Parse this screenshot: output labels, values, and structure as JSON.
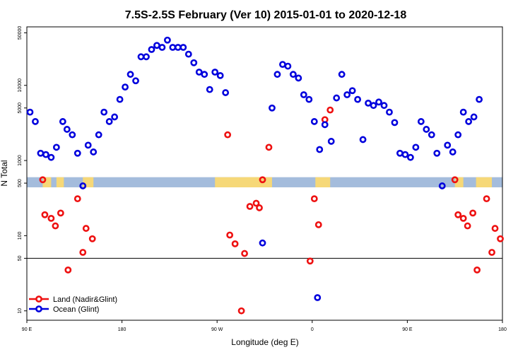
{
  "chart_data": {
    "type": "scatter",
    "title": "7.5S-2.5S February (Ver 10)   2015-01-01 to 2020-12-18",
    "xlabel": "Longitude (deg E)",
    "ylabel": "N Total",
    "x_scale": "linear",
    "y_scale": "log",
    "xlim": [
      90,
      540
    ],
    "ylim": [
      7.5,
      60000
    ],
    "x_ticks": [
      {
        "value": 90,
        "label": "90 E"
      },
      {
        "value": 180,
        "label": "180"
      },
      {
        "value": 270,
        "label": "90 W"
      },
      {
        "value": 360,
        "label": "0"
      },
      {
        "value": 450,
        "label": "90 E"
      },
      {
        "value": 540,
        "label": "180"
      }
    ],
    "y_ticks": [
      {
        "value": 10,
        "label": "10"
      },
      {
        "value": 50,
        "label": "50"
      },
      {
        "value": 100,
        "label": "100"
      },
      {
        "value": 500,
        "label": "500"
      },
      {
        "value": 1000,
        "label": "1000"
      },
      {
        "value": 5000,
        "label": "5000"
      },
      {
        "value": 10000,
        "label": "10000"
      },
      {
        "value": 50000,
        "label": "50000"
      }
    ],
    "reference_line_y": 50,
    "grid": false,
    "legend_position": "bottom-left",
    "colors": {
      "land": "#ee1111",
      "ocean": "#0000dd",
      "ocean_band": "#a4bcdc",
      "land_band": "#f6d878"
    },
    "series": [
      {
        "name": "Land (Nadir&Glint)",
        "color": "#ee1111",
        "points": [
          [
            105,
            555
          ],
          [
            107,
            190
          ],
          [
            113,
            170
          ],
          [
            117,
            135
          ],
          [
            122,
            200
          ],
          [
            129,
            35
          ],
          [
            138,
            310
          ],
          [
            143,
            60
          ],
          [
            146,
            125
          ],
          [
            152,
            91
          ],
          [
            280,
            2200
          ],
          [
            282,
            102
          ],
          [
            287,
            78
          ],
          [
            296,
            58
          ],
          [
            301,
            245
          ],
          [
            307,
            270
          ],
          [
            310,
            235
          ],
          [
            313,
            555
          ],
          [
            319,
            1500
          ],
          [
            358,
            46
          ],
          [
            362,
            310
          ],
          [
            366,
            140
          ],
          [
            372,
            3500
          ],
          [
            377,
            4700
          ],
          [
            495,
            555
          ],
          [
            498,
            190
          ],
          [
            503,
            170
          ],
          [
            507,
            135
          ],
          [
            512,
            200
          ],
          [
            516,
            35
          ],
          [
            525,
            310
          ],
          [
            530,
            60
          ],
          [
            533,
            125
          ],
          [
            538,
            91
          ],
          [
            293,
            10
          ]
        ]
      },
      {
        "name": "Ocean (Glint)",
        "color": "#0000dd",
        "points": [
          [
            93,
            4400
          ],
          [
            98,
            3300
          ],
          [
            103,
            1250
          ],
          [
            108,
            1200
          ],
          [
            113,
            1100
          ],
          [
            118,
            1500
          ],
          [
            124,
            3300
          ],
          [
            128,
            2600
          ],
          [
            133,
            2200
          ],
          [
            138,
            1250
          ],
          [
            143,
            460
          ],
          [
            148,
            1600
          ],
          [
            153,
            1300
          ],
          [
            158,
            2200
          ],
          [
            163,
            4400
          ],
          [
            168,
            3300
          ],
          [
            173,
            3800
          ],
          [
            178,
            6500
          ],
          [
            183,
            9500
          ],
          [
            188,
            14000
          ],
          [
            193,
            11500
          ],
          [
            198,
            24000
          ],
          [
            203,
            24000
          ],
          [
            208,
            30000
          ],
          [
            213,
            34000
          ],
          [
            218,
            32000
          ],
          [
            223,
            40000
          ],
          [
            228,
            32000
          ],
          [
            233,
            32000
          ],
          [
            238,
            32000
          ],
          [
            243,
            26000
          ],
          [
            248,
            20000
          ],
          [
            253,
            15000
          ],
          [
            258,
            14000
          ],
          [
            263,
            8800
          ],
          [
            268,
            15000
          ],
          [
            273,
            13500
          ],
          [
            278,
            8000
          ],
          [
            313,
            80
          ],
          [
            322,
            5000
          ],
          [
            327,
            14000
          ],
          [
            332,
            19000
          ],
          [
            337,
            18000
          ],
          [
            342,
            14000
          ],
          [
            347,
            12500
          ],
          [
            352,
            7500
          ],
          [
            357,
            6500
          ],
          [
            362,
            3300
          ],
          [
            367,
            1400
          ],
          [
            372,
            3000
          ],
          [
            378,
            1800
          ],
          [
            383,
            6800
          ],
          [
            388,
            14000
          ],
          [
            393,
            7500
          ],
          [
            398,
            8500
          ],
          [
            403,
            6500
          ],
          [
            408,
            1900
          ],
          [
            413,
            5800
          ],
          [
            418,
            5400
          ],
          [
            423,
            6000
          ],
          [
            428,
            5400
          ],
          [
            433,
            4400
          ],
          [
            438,
            3200
          ],
          [
            443,
            1250
          ],
          [
            448,
            1200
          ],
          [
            453,
            1100
          ],
          [
            458,
            1500
          ],
          [
            463,
            3300
          ],
          [
            468,
            2600
          ],
          [
            473,
            2200
          ],
          [
            478,
            1250
          ],
          [
            483,
            460
          ],
          [
            488,
            1600
          ],
          [
            493,
            1300
          ],
          [
            498,
            2200
          ],
          [
            503,
            4400
          ],
          [
            508,
            3300
          ],
          [
            513,
            3800
          ],
          [
            518,
            6500
          ],
          [
            365,
            15
          ]
        ]
      }
    ]
  }
}
